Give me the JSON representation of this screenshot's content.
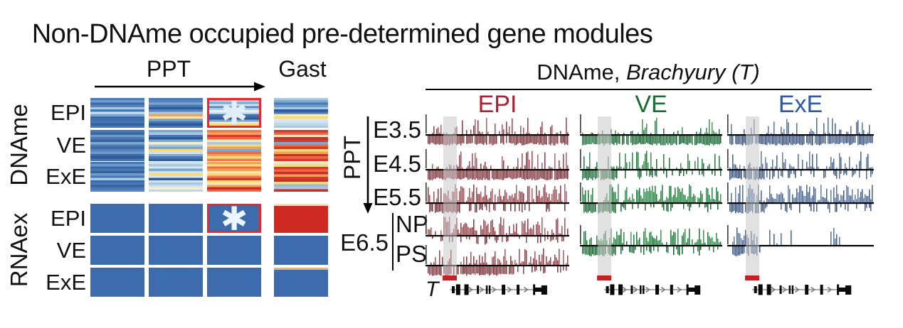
{
  "title": "Non-DNAme occupied pre-determined gene modules",
  "palette": {
    "epi_red": "#ae2130",
    "epi_dark": "#8f1a28",
    "ve_green": "#1c6b33",
    "ve_dark": "#14552a",
    "exe_blue": "#2b5ba7",
    "exe_dark": "#214b90",
    "highlight_gray": "#c9c9c9",
    "marker_red": "#c42127",
    "star_border": "#e8282d",
    "star_fill_dname": "#e3edf7",
    "star_fill_rnaex": "#edf4fb",
    "rnaex_blue": "#3d6cae",
    "gene_line_gray": "#909090",
    "gene_black": "#0a0a0a"
  },
  "heatmap": {
    "ppt_label": "PPT",
    "gast_label": "Gast",
    "star_char": "✱",
    "groups": [
      {
        "label": "DNAme",
        "rows": [
          {
            "label": "EPI",
            "cells": [
              {
                "stops": [
                  "#4a78b4",
                  "#6f9cc8",
                  "#3a68a8",
                  "#5585bc",
                  "#a9c8e2",
                  "#4a78b4",
                  "#cfe2ef",
                  "#7aa8cf",
                  "#3a68a8",
                  "#3f6eae",
                  "#4a78b4",
                  "#35619f",
                  "#4a78b4"
                ]
              },
              {
                "stops": [
                  "#4a78b4",
                  "#5585bc",
                  "#7aa8cf",
                  "#4a78b4",
                  "#2d5a9b",
                  "#5585bc",
                  "#a9c8e2",
                  "#f4a258",
                  "#f6e8b0",
                  "#7aa8cf",
                  "#4a78b4",
                  "#2d5a9b",
                  "#4a78b4"
                ]
              },
              {
                "stops": [
                  "#a9c8e2",
                  "#7aa8cf",
                  "#cfe2ef",
                  "#5585bc",
                  "#a9c8e2",
                  "#eef3f8",
                  "#cfe2ef",
                  "#4a78b4",
                  "#3a68a8",
                  "#2d5a9b",
                  "#7aa8cf",
                  "#f2eccb",
                  "#f5d97a"
                ],
                "star": true
              },
              {
                "stops": [
                  "#a9c8e2",
                  "#7aa8cf",
                  "#4a78b4",
                  "#6f9cc8",
                  "#a9c8e2",
                  "#2d5a9b",
                  "#4a78b4",
                  "#f2e8c0",
                  "#f5d97a",
                  "#d8e8f2",
                  "#cfe2ef",
                  "#bcd6ea",
                  "#a9c8e2"
                ]
              }
            ]
          },
          {
            "label": "VE",
            "cells": [
              {
                "stops": [
                  "#4a78b4",
                  "#3a68a8",
                  "#6f9cc8",
                  "#4a78b4",
                  "#35619f",
                  "#7aa8cf",
                  "#4a78b4",
                  "#3a68a8",
                  "#5585bc",
                  "#6f9cc8",
                  "#3a68a8",
                  "#2d5a9b",
                  "#4a78b4"
                ]
              },
              {
                "stops": [
                  "#7aa8cf",
                  "#a9c8e2",
                  "#4a78b4",
                  "#2d5a9b",
                  "#7aa8cf",
                  "#f2ecd0",
                  "#a9c8e2",
                  "#7aa8cf",
                  "#f5d97a",
                  "#cfe2ef",
                  "#7aa8cf",
                  "#4a78b4",
                  "#35619f"
                ]
              },
              {
                "stops": [
                  "#ef7c4a",
                  "#f4a258",
                  "#d7392e",
                  "#ef6a43",
                  "#f6e8b0",
                  "#a9c8e2",
                  "#f5d97a",
                  "#f4a258",
                  "#7aa8cf",
                  "#ef6a43",
                  "#f4a258",
                  "#f5d97a",
                  "#ef7c4a"
                ]
              },
              {
                "stops": [
                  "#d7392e",
                  "#ef6a43",
                  "#f2e8c0",
                  "#c92e26",
                  "#d7392e",
                  "#7aa8cf",
                  "#ef6a43",
                  "#d7392e",
                  "#f5d97a",
                  "#f4a258",
                  "#c92e26",
                  "#ef6a43",
                  "#d7392e"
                ]
              }
            ]
          },
          {
            "label": "ExE",
            "cells": [
              {
                "stops": [
                  "#4a78b4",
                  "#6f9cc8",
                  "#3a68a8",
                  "#4a78b4",
                  "#35619f",
                  "#6f9cc8",
                  "#4a78b4",
                  "#a9c8e2",
                  "#3a68a8",
                  "#4a78b4",
                  "#35619f",
                  "#4a78b4",
                  "#5585bc"
                ]
              },
              {
                "stops": [
                  "#cfe2ef",
                  "#a9c8e2",
                  "#d8e8f2",
                  "#7aa8cf",
                  "#cfe2ef",
                  "#f5d97a",
                  "#d8e8f2",
                  "#2d5a9b",
                  "#cfe2ef",
                  "#a9c8e2",
                  "#cfe2ef",
                  "#f2ecd0",
                  "#bcd6ea"
                ]
              },
              {
                "stops": [
                  "#f4a258",
                  "#f5d97a",
                  "#ef6a43",
                  "#f4a258",
                  "#f2e8c0",
                  "#f5d97a",
                  "#ef7c4a",
                  "#d7392e",
                  "#f5d97a",
                  "#f2e8c0",
                  "#f4a258",
                  "#c92e26",
                  "#ef6a43"
                ]
              },
              {
                "stops": [
                  "#f2e8c0",
                  "#f5d97a",
                  "#d7392e",
                  "#ef6a43",
                  "#c92e26",
                  "#f4a258",
                  "#d7392e",
                  "#c92e26",
                  "#f5d97a",
                  "#9ab8d8",
                  "#b0c4d4",
                  "#c92e26"
                ]
              }
            ]
          }
        ]
      },
      {
        "label": "RNAex",
        "rows": [
          {
            "label": "EPI",
            "cells": [
              {
                "uniform": true
              },
              {
                "uniform": true
              },
              {
                "uniform": true,
                "star": true
              },
              {
                "stops": [
                  "#f2e2b0",
                  "#ce2a23",
                  "#ce2a23",
                  "#ce2a23",
                  "#ce2a23",
                  "#ce2a23",
                  "#ce2a23",
                  "#ce2a23",
                  "#ce2a23",
                  "#ce2a23",
                  "#ce2a23",
                  "#ce2a23",
                  "#ce2a23"
                ],
                "lines": true
              }
            ]
          },
          {
            "label": "VE",
            "cells": [
              {
                "uniform": true
              },
              {
                "uniform": true
              },
              {
                "uniform": true
              },
              {
                "uniform": true
              }
            ]
          },
          {
            "label": "ExE",
            "cells": [
              {
                "uniform": true
              },
              {
                "uniform": true
              },
              {
                "uniform": true
              },
              {
                "stops": [
                  "#f2b46c",
                  "#3d6cae",
                  "#3d6cae",
                  "#3d6cae",
                  "#3d6cae",
                  "#3d6cae",
                  "#3d6cae",
                  "#3d6cae",
                  "#3d6cae",
                  "#3d6cae",
                  "#3d6cae",
                  "#3d6cae",
                  "#3d6cae"
                ],
                "lines": true
              }
            ]
          }
        ]
      }
    ]
  },
  "browser": {
    "header_prefix": "DNAme, ",
    "header_gene": "Brachyury (T)",
    "ppt_label": "PPT",
    "gene_label": "T",
    "stage_labels": [
      "E3.5",
      "E4.5",
      "E5.5"
    ],
    "e65": {
      "label": "E6.5",
      "sub": [
        "NP",
        "PS"
      ]
    },
    "columns": [
      {
        "label": "EPI",
        "color": "#ae2130",
        "dark": "#8f1a28"
      },
      {
        "label": "VE",
        "color": "#1c6b33",
        "dark": "#14552a"
      },
      {
        "label": "ExE",
        "color": "#2b5ba7",
        "dark": "#214b90"
      }
    ],
    "profiles": {
      "e35": {
        "base_density": 0.42,
        "hpow": 2.8,
        "hmax": 24,
        "spike": true
      },
      "e45": {
        "base_density": 0.5,
        "hpow": 2.4,
        "hmax": 26,
        "spike": true
      },
      "dense": {
        "base_density": 0.5,
        "boost_from": 0.2,
        "boost_density": 0.85,
        "hpow": 1.15,
        "hmax": 26
      },
      "np": {
        "base_density": 0.45,
        "boost_from": 0.12,
        "boost_density": 0.82,
        "hpow": 1.15,
        "hmax": 26
      },
      "ps": {
        "base_density": 0.58,
        "hpow": 1.7,
        "hmax": 24,
        "spike": true
      },
      "ve65": {
        "base_density": 0.78,
        "hpow": 1.2,
        "hmax": 24
      },
      "clusters": {
        "gap_density": 0.02,
        "hpow": 1.3,
        "hmax": 24,
        "clusters": [
          [
            0,
            0.05,
            0.5,
            16
          ],
          [
            0.05,
            0.2,
            0.78,
            26
          ],
          [
            0.27,
            0.34,
            0.5,
            22
          ],
          [
            0.4,
            0.48,
            0.55,
            24
          ],
          [
            0.56,
            0.61,
            0.18,
            12
          ],
          [
            0.7,
            0.76,
            0.55,
            24
          ],
          [
            0.94,
            0.975,
            0.6,
            22
          ]
        ]
      }
    },
    "tracks": [
      {
        "col": 0,
        "row": "E3.5",
        "baseline": 190,
        "up": "e35",
        "down": "full",
        "seed": 11
      },
      {
        "col": 0,
        "row": "E4.5",
        "baseline": 239,
        "up": "e45",
        "down": "full",
        "seed": 12
      },
      {
        "col": 0,
        "row": "E5.5",
        "baseline": 286,
        "up": "dense",
        "down": "left",
        "seed": 13
      },
      {
        "col": 0,
        "row": "E6.5 NP",
        "baseline": 332,
        "up": "np",
        "down": "sparse",
        "seed": 14
      },
      {
        "col": 0,
        "row": "E6.5 PS",
        "baseline": 374,
        "up": "ps",
        "down": "mostly",
        "seed": 15
      },
      {
        "col": 1,
        "row": "E3.5",
        "baseline": 190,
        "up": "e35",
        "down": "full",
        "seed": 21
      },
      {
        "col": 1,
        "row": "E4.5",
        "baseline": 239,
        "up": "e45",
        "down": "left",
        "seed": 22
      },
      {
        "col": 1,
        "row": "E5.5",
        "baseline": 286,
        "up": "dense",
        "down": "left",
        "seed": 23
      },
      {
        "col": 1,
        "row": "E6.5",
        "baseline": 346,
        "up": "ve65",
        "down": "left",
        "seed": 24
      },
      {
        "col": 2,
        "row": "E3.5",
        "baseline": 190,
        "up": "e35",
        "down": "full",
        "seed": 31
      },
      {
        "col": 2,
        "row": "E4.5",
        "baseline": 239,
        "up": "e45",
        "down": "left",
        "seed": 32
      },
      {
        "col": 2,
        "row": "E5.5",
        "baseline": 286,
        "up": "dense",
        "down": "left",
        "seed": 33
      },
      {
        "col": 2,
        "row": "E6.5",
        "baseline": 346,
        "up": "clusters",
        "down": "leftblock",
        "seed": 34
      }
    ]
  },
  "chart_data": [
    {
      "type": "heatmap",
      "title": "Non-DNAme occupied pre-determined gene modules",
      "row_groups": [
        "DNAme",
        "RNAex"
      ],
      "rows": [
        "DNAme EPI",
        "DNAme VE",
        "DNAme ExE",
        "RNAex EPI",
        "RNAex VE",
        "RNAex ExE"
      ],
      "columns": [
        "PPT stage 1",
        "PPT stage 2",
        "PPT stage 3",
        "Gast"
      ],
      "values": [
        [
          "low",
          "low",
          "low",
          "low"
        ],
        [
          "low",
          "low-mixed",
          "high",
          "high"
        ],
        [
          "low",
          "low-light",
          "high",
          "high"
        ],
        [
          "low",
          "low",
          "low",
          "high"
        ],
        [
          "low",
          "low",
          "low",
          "low"
        ],
        [
          "low",
          "low",
          "low",
          "low"
        ]
      ],
      "value_scale": "blue = low, yellow/orange = intermediate, red = high",
      "starred_cells": [
        "DNAme EPI x PPT stage 3",
        "RNAex EPI x PPT stage 3"
      ],
      "legend_position": "none",
      "grid": false
    },
    {
      "type": "area",
      "title": "DNAme, Brachyury (T)",
      "columns": [
        "EPI",
        "VE",
        "ExE"
      ],
      "rows": [
        "E3.5",
        "E4.5",
        "E5.5",
        "E6.5 NP",
        "E6.5 PS"
      ],
      "notes": "Per-CpG DNA methylation bar tracks along the Brachyury (T) locus. Gray vertical band marks the T promoter (red bar under tracks); gene model with exons drawn below. Gene-body methylation increases from E3.5 to E6.5 while the highlighted promoter stays unmethylated. VE and ExE show one combined E6.5 track; ExE E6.5 shows only sparse methylation clusters."
    }
  ]
}
